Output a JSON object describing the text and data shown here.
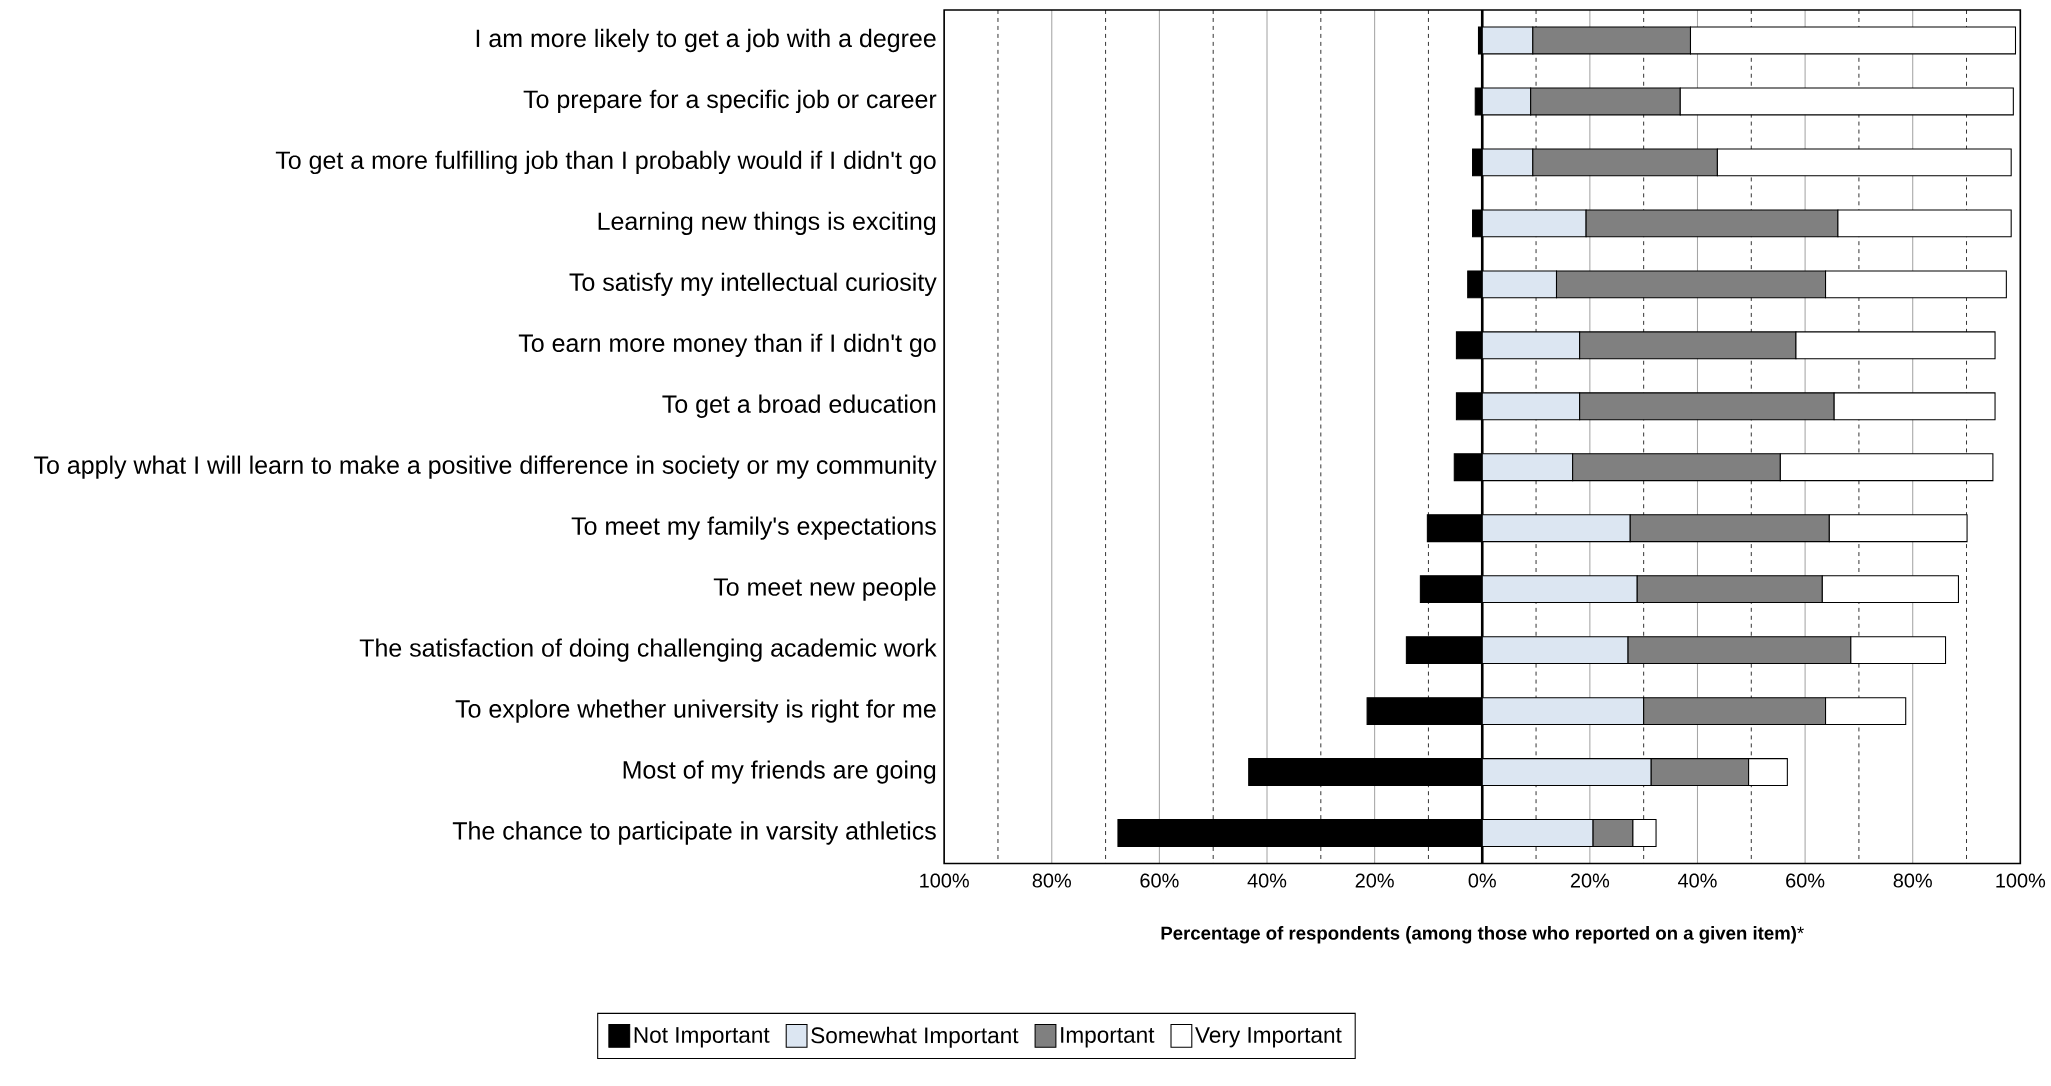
{
  "chart_data": {
    "type": "bar",
    "orientation": "horizontal",
    "stacked": true,
    "xlabel": "**Percentage of respondents (among those who reported on a given item)***",
    "categories": [
      "I am more likely to get a job with a degree",
      "To prepare for a specific job or career",
      "To get a more fulfilling job than I probably would if I didn't go",
      "Learning new things is exciting",
      "To satisfy my intellectual curiosity",
      "To earn more money than if I didn't go",
      "To get a broad education",
      "To apply what I will learn to make a positive difference in society or my community",
      "To meet my family's expectations",
      "To meet new people",
      "The satisfaction of doing challenging academic work",
      "To explore whether university is right for me",
      "Most of my friends are going",
      "The chance to participate in varsity athletics"
    ],
    "series": [
      {
        "name": "Not Important",
        "color": "#000000",
        "values": [
          -0.7,
          -1.3,
          -1.8,
          -1.8,
          -2.7,
          -4.8,
          -4.8,
          -5.2,
          -10.2,
          -11.5,
          -14.1,
          -21.4,
          -43.4,
          -67.7
        ]
      },
      {
        "name": "Somewhat Important",
        "color": "#dce6f2",
        "values": [
          9.4,
          9.0,
          9.4,
          19.3,
          13.8,
          18.1,
          18.1,
          16.8,
          27.5,
          28.8,
          27.1,
          30.0,
          31.4,
          20.6
        ]
      },
      {
        "name": "Important",
        "color": "#808080",
        "values": [
          29.3,
          27.8,
          34.3,
          46.8,
          50.0,
          40.2,
          47.3,
          38.6,
          37.0,
          34.4,
          41.4,
          33.8,
          18.1,
          7.4
        ]
      },
      {
        "name": "Very Important",
        "color": "#ffffff",
        "values": [
          60.4,
          61.9,
          54.6,
          32.2,
          33.6,
          37.0,
          29.9,
          39.5,
          25.6,
          25.3,
          17.6,
          14.9,
          7.2,
          4.3
        ]
      }
    ],
    "xlim": [
      -100,
      100
    ],
    "xticks": [
      {
        "value": -100,
        "label": "100%"
      },
      {
        "value": -90,
        "label": null
      },
      {
        "value": -80,
        "label": "80%"
      },
      {
        "value": -70,
        "label": null
      },
      {
        "value": -60,
        "label": "60%"
      },
      {
        "value": -50,
        "label": null
      },
      {
        "value": -40,
        "label": "40%"
      },
      {
        "value": -30,
        "label": null
      },
      {
        "value": -20,
        "label": "20%"
      },
      {
        "value": -10,
        "label": null
      },
      {
        "value": 0,
        "label": "0%"
      },
      {
        "value": 10,
        "label": null
      },
      {
        "value": 20,
        "label": "20%"
      },
      {
        "value": 30,
        "label": null
      },
      {
        "value": 40,
        "label": "40%"
      },
      {
        "value": 50,
        "label": null
      },
      {
        "value": 60,
        "label": "60%"
      },
      {
        "value": 70,
        "label": null
      },
      {
        "value": 80,
        "label": "80%"
      },
      {
        "value": 90,
        "label": null
      },
      {
        "value": 100,
        "label": "100%"
      }
    ],
    "grid": "x",
    "legend": "bottom",
    "ref_lines": [
      {
        "axis": "x",
        "value": 0,
        "color": "#000000"
      }
    ]
  }
}
